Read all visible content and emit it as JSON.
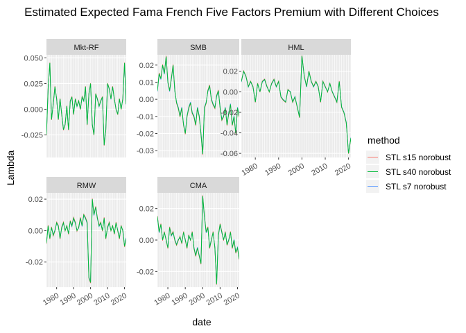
{
  "chart_data": {
    "type": "line",
    "title": "Estimated Expected Fama French Five Factors Premium with Different Choices",
    "xlabel": "date",
    "ylabel": "Lambda",
    "x_ticks": [
      "1980",
      "1990",
      "2000",
      "2010",
      "2020"
    ],
    "x_range": [
      1974,
      2021
    ],
    "legend": {
      "title": "method",
      "placement": "right",
      "entries": [
        {
          "name": "STL s15 norobust",
          "color": "#F8766D"
        },
        {
          "name": "STL s40 norobust",
          "color": "#00BA38"
        },
        {
          "name": "STL s7 norobust",
          "color": "#619CFF"
        }
      ]
    },
    "facets": [
      {
        "label": "Mkt-RF",
        "ylim": [
          -0.047,
          0.053
        ],
        "y_ticks": [
          {
            "value": 0.05,
            "label": "0.050"
          },
          {
            "value": 0.025,
            "label": "0.025"
          },
          {
            "value": 0.0,
            "label": "0.000"
          },
          {
            "value": -0.025,
            "label": "-0.025"
          }
        ],
        "points": [
          [
            1974,
            -0.025
          ],
          [
            1975,
            0.02
          ],
          [
            1976,
            0.045
          ],
          [
            1977,
            -0.01
          ],
          [
            1978,
            0.005
          ],
          [
            1979,
            0.022
          ],
          [
            1980,
            0.01
          ],
          [
            1981,
            -0.01
          ],
          [
            1982,
            0.01
          ],
          [
            1983,
            -0.005
          ],
          [
            1984,
            -0.02
          ],
          [
            1985,
            -0.015
          ],
          [
            1986,
            0.003
          ],
          [
            1987,
            -0.02
          ],
          [
            1988,
            0.008
          ],
          [
            1989,
            0.012
          ],
          [
            1990,
            -0.005
          ],
          [
            1991,
            0.01
          ],
          [
            1992,
            0.003
          ],
          [
            1993,
            0.008
          ],
          [
            1994,
            0.0
          ],
          [
            1995,
            0.012
          ],
          [
            1996,
            0.008
          ],
          [
            1997,
            0.022
          ],
          [
            1998,
            -0.015
          ],
          [
            1999,
            0.015
          ],
          [
            2000,
            0.025
          ],
          [
            2001,
            -0.015
          ],
          [
            2002,
            -0.025
          ],
          [
            2003,
            0.015
          ],
          [
            2004,
            0.01
          ],
          [
            2005,
            0.003
          ],
          [
            2006,
            0.008
          ],
          [
            2007,
            0.012
          ],
          [
            2008,
            -0.035
          ],
          [
            2009,
            -0.02
          ],
          [
            2010,
            0.025
          ],
          [
            2011,
            0.02
          ],
          [
            2012,
            0.01
          ],
          [
            2013,
            0.022
          ],
          [
            2014,
            0.01
          ],
          [
            2015,
            0.0
          ],
          [
            2016,
            -0.005
          ],
          [
            2017,
            0.01
          ],
          [
            2018,
            0.0
          ],
          [
            2019,
            0.01
          ],
          [
            2020,
            0.045
          ],
          [
            2021,
            0.005
          ]
        ]
      },
      {
        "label": "SMB",
        "ylim": [
          -0.034,
          0.026
        ],
        "y_ticks": [
          {
            "value": 0.02,
            "label": "0.02"
          },
          {
            "value": 0.01,
            "label": "0.01"
          },
          {
            "value": 0.0,
            "label": "0.00"
          },
          {
            "value": -0.01,
            "label": "-0.01"
          },
          {
            "value": -0.02,
            "label": "-0.02"
          },
          {
            "value": -0.03,
            "label": "-0.03"
          }
        ],
        "points": [
          [
            1974,
            0.005
          ],
          [
            1975,
            0.015
          ],
          [
            1976,
            0.012
          ],
          [
            1977,
            0.02
          ],
          [
            1978,
            0.015
          ],
          [
            1979,
            0.025
          ],
          [
            1980,
            0.01
          ],
          [
            1981,
            0.005
          ],
          [
            1982,
            0.012
          ],
          [
            1983,
            0.02
          ],
          [
            1984,
            0.005
          ],
          [
            1985,
            -0.002
          ],
          [
            1986,
            -0.005
          ],
          [
            1987,
            -0.01
          ],
          [
            1988,
            -0.005
          ],
          [
            1989,
            -0.015
          ],
          [
            1990,
            -0.02
          ],
          [
            1991,
            -0.01
          ],
          [
            1992,
            -0.005
          ],
          [
            1993,
            -0.002
          ],
          [
            1994,
            -0.008
          ],
          [
            1995,
            -0.01
          ],
          [
            1996,
            -0.015
          ],
          [
            1997,
            -0.005
          ],
          [
            1998,
            -0.01
          ],
          [
            1999,
            -0.02
          ],
          [
            2000,
            -0.032
          ],
          [
            2001,
            -0.005
          ],
          [
            2002,
            -0.002
          ],
          [
            2003,
            0.005
          ],
          [
            2004,
            0.008
          ],
          [
            2005,
            0.0
          ],
          [
            2006,
            -0.003
          ],
          [
            2007,
            -0.005
          ],
          [
            2008,
            0.002
          ],
          [
            2009,
            0.005
          ],
          [
            2010,
            -0.005
          ],
          [
            2011,
            -0.012
          ],
          [
            2012,
            -0.01
          ],
          [
            2013,
            -0.005
          ],
          [
            2014,
            -0.015
          ],
          [
            2015,
            -0.008
          ],
          [
            2016,
            -0.003
          ],
          [
            2017,
            -0.015
          ],
          [
            2018,
            -0.01
          ],
          [
            2019,
            -0.02
          ],
          [
            2020,
            -0.005
          ],
          [
            2021,
            -0.01
          ]
        ]
      },
      {
        "label": "HML",
        "ylim": [
          -0.064,
          0.036
        ],
        "y_ticks": [
          {
            "value": 0.02,
            "label": "0.02"
          },
          {
            "value": 0.0,
            "label": "0.00"
          },
          {
            "value": -0.02,
            "label": "-0.02"
          },
          {
            "value": -0.04,
            "label": "-0.04"
          },
          {
            "value": -0.06,
            "label": "-0.06"
          }
        ],
        "points": [
          [
            1974,
            0.01
          ],
          [
            1975,
            0.02
          ],
          [
            1976,
            0.015
          ],
          [
            1977,
            0.005
          ],
          [
            1978,
            0.01
          ],
          [
            1979,
            0.005
          ],
          [
            1980,
            -0.01
          ],
          [
            1981,
            0.008
          ],
          [
            1982,
            0.0
          ],
          [
            1983,
            0.01
          ],
          [
            1984,
            0.012
          ],
          [
            1985,
            0.005
          ],
          [
            1986,
            0.0
          ],
          [
            1987,
            0.008
          ],
          [
            1988,
            0.012
          ],
          [
            1989,
            0.005
          ],
          [
            1990,
            0.01
          ],
          [
            1991,
            -0.005
          ],
          [
            1992,
            -0.008
          ],
          [
            1993,
            -0.01
          ],
          [
            1994,
            0.002
          ],
          [
            1995,
            0.0
          ],
          [
            1996,
            -0.01
          ],
          [
            1997,
            -0.005
          ],
          [
            1998,
            -0.015
          ],
          [
            1999,
            -0.025
          ],
          [
            2000,
            0.035
          ],
          [
            2001,
            0.015
          ],
          [
            2002,
            0.005
          ],
          [
            2003,
            0.02
          ],
          [
            2004,
            0.01
          ],
          [
            2005,
            0.005
          ],
          [
            2006,
            0.01
          ],
          [
            2007,
            0.005
          ],
          [
            2008,
            -0.01
          ],
          [
            2009,
            0.01
          ],
          [
            2010,
            0.005
          ],
          [
            2011,
            0.0
          ],
          [
            2012,
            0.008
          ],
          [
            2013,
            0.0
          ],
          [
            2014,
            -0.005
          ],
          [
            2015,
            -0.01
          ],
          [
            2016,
            0.01
          ],
          [
            2017,
            -0.015
          ],
          [
            2018,
            -0.02
          ],
          [
            2019,
            -0.03
          ],
          [
            2020,
            -0.06
          ],
          [
            2021,
            -0.045
          ]
        ]
      },
      {
        "label": "RMW",
        "ylim": [
          -0.036,
          0.024
        ],
        "y_ticks": [
          {
            "value": 0.02,
            "label": "0.02"
          },
          {
            "value": 0.0,
            "label": "0.00"
          },
          {
            "value": -0.02,
            "label": "-0.02"
          }
        ],
        "points": [
          [
            1974,
            -0.008
          ],
          [
            1975,
            0.003
          ],
          [
            1976,
            -0.005
          ],
          [
            1977,
            0.002
          ],
          [
            1978,
            -0.003
          ],
          [
            1979,
            0.0
          ],
          [
            1980,
            0.005
          ],
          [
            1981,
            0.003
          ],
          [
            1982,
            -0.005
          ],
          [
            1983,
            0.002
          ],
          [
            1984,
            0.005
          ],
          [
            1985,
            0.0
          ],
          [
            1986,
            0.003
          ],
          [
            1987,
            -0.002
          ],
          [
            1988,
            0.006
          ],
          [
            1989,
            0.003
          ],
          [
            1990,
            0.008
          ],
          [
            1991,
            0.005
          ],
          [
            1992,
            0.0
          ],
          [
            1993,
            0.002
          ],
          [
            1994,
            0.008
          ],
          [
            1995,
            0.003
          ],
          [
            1996,
            0.01
          ],
          [
            1997,
            0.008
          ],
          [
            1998,
            0.005
          ],
          [
            1999,
            -0.03
          ],
          [
            2000,
            -0.033
          ],
          [
            2001,
            0.02
          ],
          [
            2002,
            0.01
          ],
          [
            2003,
            0.015
          ],
          [
            2004,
            0.008
          ],
          [
            2005,
            0.003
          ],
          [
            2006,
            0.005
          ],
          [
            2007,
            0.0
          ],
          [
            2008,
            0.008
          ],
          [
            2009,
            -0.005
          ],
          [
            2010,
            0.002
          ],
          [
            2011,
            0.005
          ],
          [
            2012,
            0.0
          ],
          [
            2013,
            0.003
          ],
          [
            2014,
            -0.002
          ],
          [
            2015,
            0.005
          ],
          [
            2016,
            0.0
          ],
          [
            2017,
            -0.005
          ],
          [
            2018,
            0.003
          ],
          [
            2019,
            0.0
          ],
          [
            2020,
            -0.01
          ],
          [
            2021,
            -0.005
          ]
        ]
      },
      {
        "label": "CMA",
        "ylim": [
          -0.03,
          0.03
        ],
        "y_ticks": [
          {
            "value": 0.02,
            "label": "0.02"
          },
          {
            "value": 0.0,
            "label": "0.00"
          },
          {
            "value": -0.02,
            "label": "-0.02"
          }
        ],
        "points": [
          [
            1974,
            0.015
          ],
          [
            1975,
            0.005
          ],
          [
            1976,
            0.01
          ],
          [
            1977,
            0.0
          ],
          [
            1978,
            0.005
          ],
          [
            1979,
            0.0
          ],
          [
            1980,
            -0.005
          ],
          [
            1981,
            0.008
          ],
          [
            1982,
            0.003
          ],
          [
            1983,
            0.005
          ],
          [
            1984,
            0.0
          ],
          [
            1985,
            -0.003
          ],
          [
            1986,
            0.0
          ],
          [
            1987,
            0.002
          ],
          [
            1988,
            -0.002
          ],
          [
            1989,
            0.005
          ],
          [
            1990,
            0.0
          ],
          [
            1991,
            -0.005
          ],
          [
            1992,
            0.003
          ],
          [
            1993,
            0.0
          ],
          [
            1994,
            0.005
          ],
          [
            1995,
            -0.005
          ],
          [
            1996,
            -0.01
          ],
          [
            1997,
            -0.005
          ],
          [
            1998,
            -0.01
          ],
          [
            1999,
            -0.015
          ],
          [
            2000,
            0.028
          ],
          [
            2001,
            0.015
          ],
          [
            2002,
            0.005
          ],
          [
            2003,
            0.008
          ],
          [
            2004,
            -0.005
          ],
          [
            2005,
            0.0
          ],
          [
            2006,
            0.005
          ],
          [
            2007,
            -0.005
          ],
          [
            2008,
            -0.028
          ],
          [
            2009,
            0.003
          ],
          [
            2010,
            0.01
          ],
          [
            2011,
            0.005
          ],
          [
            2012,
            0.0
          ],
          [
            2013,
            0.005
          ],
          [
            2014,
            -0.003
          ],
          [
            2015,
            0.0
          ],
          [
            2016,
            0.005
          ],
          [
            2017,
            -0.005
          ],
          [
            2018,
            0.0
          ],
          [
            2019,
            -0.008
          ],
          [
            2020,
            -0.005
          ],
          [
            2021,
            -0.012
          ]
        ]
      }
    ]
  }
}
